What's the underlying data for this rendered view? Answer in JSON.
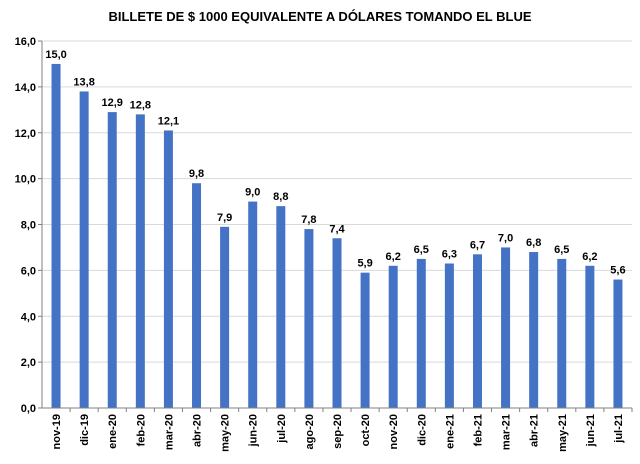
{
  "chart_data": {
    "type": "bar",
    "title": "BILLETE DE $ 1000 EQUIVALENTE  A DÓLARES TOMANDO  EL BLUE",
    "categories": [
      "nov-19",
      "dic-19",
      "ene-20",
      "feb-20",
      "mar-20",
      "abr-20",
      "may-20",
      "jun-20",
      "jul-20",
      "ago-20",
      "sep-20",
      "oct-20",
      "nov-20",
      "dic-20",
      "ene-21",
      "feb-21",
      "mar-21",
      "abr-21",
      "may-21",
      "jun-21",
      "jul-21"
    ],
    "values": [
      15.0,
      13.8,
      12.9,
      12.8,
      12.1,
      9.8,
      7.9,
      9.0,
      8.8,
      7.8,
      7.4,
      5.9,
      6.2,
      6.5,
      6.3,
      6.7,
      7.0,
      6.8,
      6.5,
      6.2,
      5.6
    ],
    "value_labels": [
      "15,0",
      "13,8",
      "12,9",
      "12,8",
      "12,1",
      "9,8",
      "7,9",
      "9,0",
      "8,8",
      "7,8",
      "7,4",
      "5,9",
      "6,2",
      "6,5",
      "6,3",
      "6,7",
      "7,0",
      "6,8",
      "6,5",
      "6,2",
      "5,6"
    ],
    "yticks": [
      0,
      2,
      4,
      6,
      8,
      10,
      12,
      14,
      16
    ],
    "ytick_labels": [
      "0,0",
      "2,0",
      "4,0",
      "6,0",
      "8,0",
      "10,0",
      "12,0",
      "14,0",
      "16,0"
    ],
    "ylim": [
      0,
      16
    ],
    "grid": true,
    "legend": "none",
    "bar_color": "#4472C4",
    "grid_color": "#D9D9D9"
  }
}
